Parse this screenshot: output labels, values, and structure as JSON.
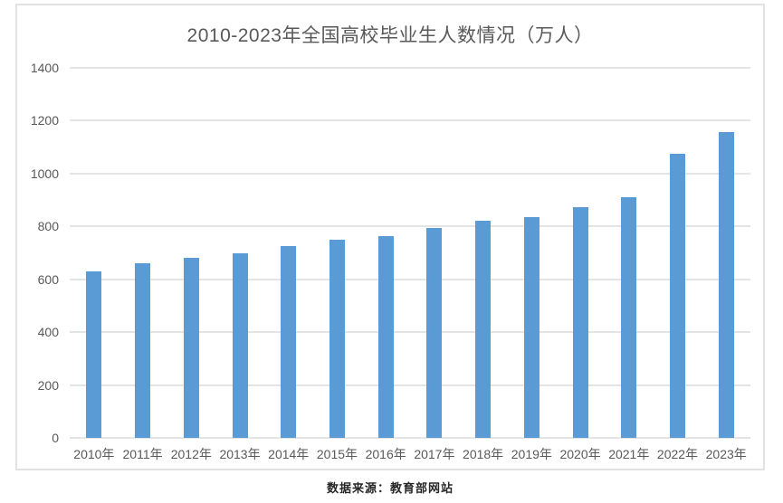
{
  "chart_data": {
    "type": "bar",
    "title": "2010-2023年全国高校毕业生人数情况（万人）",
    "categories": [
      "2010年",
      "2011年",
      "2012年",
      "2013年",
      "2014年",
      "2015年",
      "2016年",
      "2017年",
      "2018年",
      "2019年",
      "2020年",
      "2021年",
      "2022年",
      "2023年"
    ],
    "values": [
      631,
      660,
      680,
      699,
      727,
      749,
      765,
      795,
      820,
      834,
      874,
      909,
      1076,
      1158
    ],
    "xlabel": "",
    "ylabel": "",
    "ylim": [
      0,
      1400
    ],
    "yticks": [
      0,
      200,
      400,
      600,
      800,
      1000,
      1200,
      1400
    ],
    "grid": true,
    "legend_position": "none"
  },
  "footer": {
    "source_label": "数据来源：教育部网站"
  },
  "colors": {
    "bar": "#5b9bd5",
    "gridline": "#e4e4e4",
    "frame_border": "#e2e2e2",
    "title_text": "#595959",
    "axis_text": "#595959",
    "footer_text": "#262626"
  }
}
